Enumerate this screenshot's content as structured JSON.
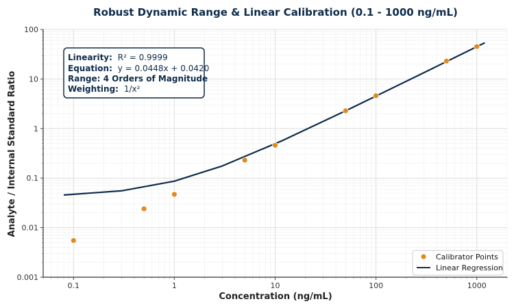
{
  "chart_data": {
    "type": "scatter",
    "title": "Robust Dynamic Range & Linear Calibration (0.1 - 1000 ng/mL)",
    "xlabel": "Concentration (ng/mL)",
    "ylabel": "Analyte / Internal Standard Ratio",
    "x_scale": "log",
    "y_scale": "log",
    "xlim": [
      0.05,
      2000
    ],
    "ylim": [
      0.001,
      100
    ],
    "x_ticks": [
      {
        "value": 0.1,
        "label": "0.1"
      },
      {
        "value": 1,
        "label": "1"
      },
      {
        "value": 10,
        "label": "10"
      },
      {
        "value": 100,
        "label": "100"
      },
      {
        "value": 1000,
        "label": "1000"
      }
    ],
    "y_ticks": [
      {
        "value": 0.001,
        "label": "0.001"
      },
      {
        "value": 0.01,
        "label": "0.01"
      },
      {
        "value": 0.1,
        "label": "0.1"
      },
      {
        "value": 1,
        "label": "1"
      },
      {
        "value": 10,
        "label": "10"
      },
      {
        "value": 100,
        "label": "100"
      }
    ],
    "grid": true,
    "legend_position": "bottom-right",
    "series": [
      {
        "name": "Calibrator Points",
        "kind": "scatter",
        "color": "#e08a1e",
        "x": [
          0.1,
          0.5,
          1,
          5,
          10,
          50,
          100,
          500,
          1000
        ],
        "y": [
          0.0055,
          0.024,
          0.047,
          0.23,
          0.46,
          2.28,
          4.6,
          23,
          45
        ]
      },
      {
        "name": "Linear Regression",
        "kind": "line",
        "color": "#0d2b4a",
        "x": [
          0.08,
          0.3,
          1,
          3,
          12,
          50,
          100,
          500,
          1200
        ],
        "y": [
          0.0456,
          0.0554,
          0.0868,
          0.176,
          0.58,
          2.28,
          4.52,
          22.4,
          53.8
        ]
      }
    ],
    "annotation": {
      "lines": [
        {
          "label": "Linearity:",
          "value": "R² = 0.9999"
        },
        {
          "label": "Equation:",
          "value": "y = 0.0448x + 0.0420"
        },
        {
          "label": "Range: 4 Orders of Magnitude",
          "value": ""
        },
        {
          "label": "Weighting:",
          "value": "1/x²"
        }
      ]
    }
  }
}
